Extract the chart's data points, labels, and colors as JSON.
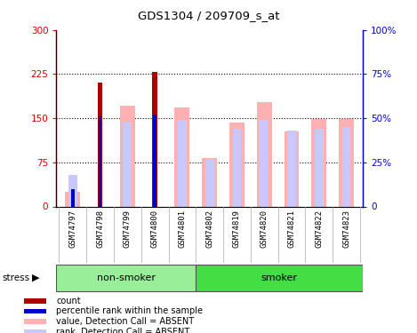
{
  "title": "GDS1304 / 209709_s_at",
  "samples": [
    "GSM74797",
    "GSM74798",
    "GSM74799",
    "GSM74800",
    "GSM74801",
    "GSM74802",
    "GSM74819",
    "GSM74820",
    "GSM74821",
    "GSM74822",
    "GSM74823"
  ],
  "count_values": [
    0,
    210,
    0,
    228,
    0,
    0,
    0,
    0,
    0,
    0,
    0
  ],
  "value_absent": [
    25,
    0,
    172,
    0,
    168,
    83,
    143,
    178,
    128,
    148,
    148
  ],
  "rank_absent_pct": [
    18,
    0,
    48,
    0,
    49,
    27,
    44,
    49,
    43,
    44,
    45
  ],
  "percentile_rank_pct": [
    10,
    51,
    0,
    52,
    0,
    0,
    0,
    0,
    0,
    0,
    0
  ],
  "ylim_left": [
    0,
    300
  ],
  "ylim_right": [
    0,
    100
  ],
  "yticks_left": [
    0,
    75,
    150,
    225,
    300
  ],
  "ytick_labels_left": [
    "0",
    "75",
    "150",
    "225",
    "300"
  ],
  "yticks_right": [
    0,
    25,
    50,
    75,
    100
  ],
  "ytick_labels_right": [
    "0",
    "25%",
    "50%",
    "75%",
    "100%"
  ],
  "color_count": "#aa0000",
  "color_percentile": "#0000cc",
  "color_value_absent": "#ffb0b0",
  "color_rank_absent": "#c8c8ff",
  "bg_xtick": "#d0d0d0",
  "bg_nonsmoker": "#99ee99",
  "bg_smoker": "#44dd44",
  "legend_items": [
    "count",
    "percentile rank within the sample",
    "value, Detection Call = ABSENT",
    "rank, Detection Call = ABSENT"
  ],
  "legend_colors": [
    "#aa0000",
    "#0000cc",
    "#ffb0b0",
    "#c8c8ff"
  ],
  "non_smoker_count": 5,
  "smoker_count": 6
}
